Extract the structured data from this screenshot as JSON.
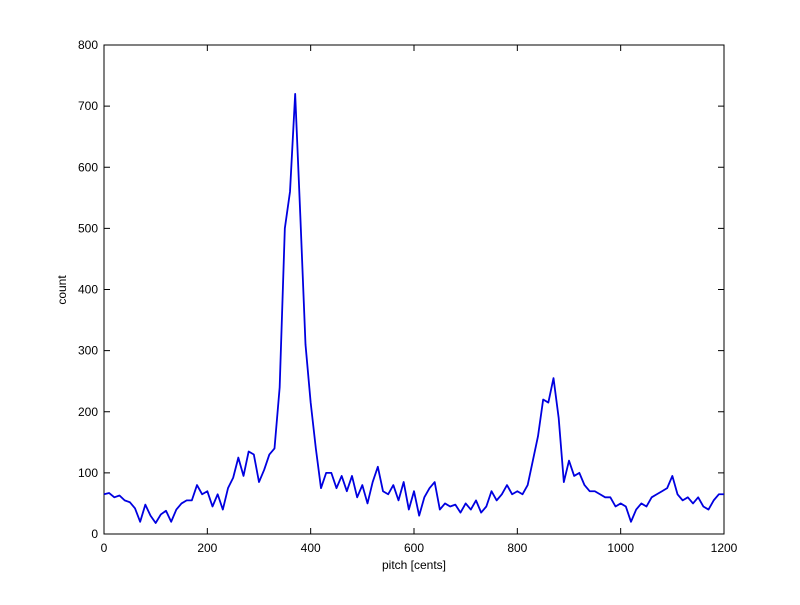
{
  "chart_data": {
    "type": "line",
    "xlabel": "pitch [cents]",
    "ylabel": "count",
    "x": [
      0,
      10,
      20,
      30,
      40,
      50,
      60,
      70,
      80,
      90,
      100,
      110,
      120,
      130,
      140,
      150,
      160,
      170,
      180,
      190,
      200,
      210,
      220,
      230,
      240,
      250,
      260,
      270,
      280,
      290,
      300,
      310,
      320,
      330,
      340,
      350,
      360,
      370,
      380,
      390,
      400,
      410,
      420,
      430,
      440,
      450,
      460,
      470,
      480,
      490,
      500,
      510,
      520,
      530,
      540,
      550,
      560,
      570,
      580,
      590,
      600,
      610,
      620,
      630,
      640,
      650,
      660,
      670,
      680,
      690,
      700,
      710,
      720,
      730,
      740,
      750,
      760,
      770,
      780,
      790,
      800,
      810,
      820,
      830,
      840,
      850,
      860,
      870,
      880,
      890,
      900,
      910,
      920,
      930,
      940,
      950,
      960,
      970,
      980,
      990,
      1000,
      1010,
      1020,
      1030,
      1040,
      1050,
      1060,
      1070,
      1080,
      1090,
      1100,
      1110,
      1120,
      1130,
      1140,
      1150,
      1160,
      1170,
      1180,
      1190,
      1200
    ],
    "series": [
      {
        "color": "#0000e0",
        "values": [
          65,
          67,
          60,
          63,
          55,
          52,
          42,
          20,
          48,
          30,
          18,
          32,
          38,
          20,
          40,
          50,
          55,
          55,
          80,
          65,
          70,
          45,
          65,
          40,
          75,
          92,
          125,
          95,
          135,
          130,
          85,
          105,
          130,
          140,
          240,
          500,
          560,
          720,
          520,
          310,
          215,
          140,
          75,
          100,
          100,
          75,
          95,
          70,
          95,
          60,
          80,
          50,
          85,
          110,
          70,
          65,
          80,
          55,
          85,
          40,
          70,
          30,
          60,
          75,
          85,
          40,
          50,
          45,
          48,
          35,
          50,
          40,
          55,
          35,
          45,
          70,
          55,
          65,
          80,
          65,
          70,
          65,
          80,
          120,
          160,
          220,
          215,
          255,
          190,
          85,
          120,
          95,
          100,
          80,
          70,
          70,
          65,
          60,
          60,
          45,
          50,
          45,
          20,
          40,
          50,
          45,
          60,
          65,
          70,
          75,
          95,
          65,
          55,
          60,
          50,
          60,
          45,
          40,
          55,
          65,
          65
        ]
      }
    ],
    "xlim": [
      0,
      1200
    ],
    "ylim": [
      0,
      800
    ],
    "xticks": [
      0,
      200,
      400,
      600,
      800,
      1000,
      1200
    ],
    "yticks": [
      0,
      100,
      200,
      300,
      400,
      500,
      600,
      700,
      800
    ]
  }
}
